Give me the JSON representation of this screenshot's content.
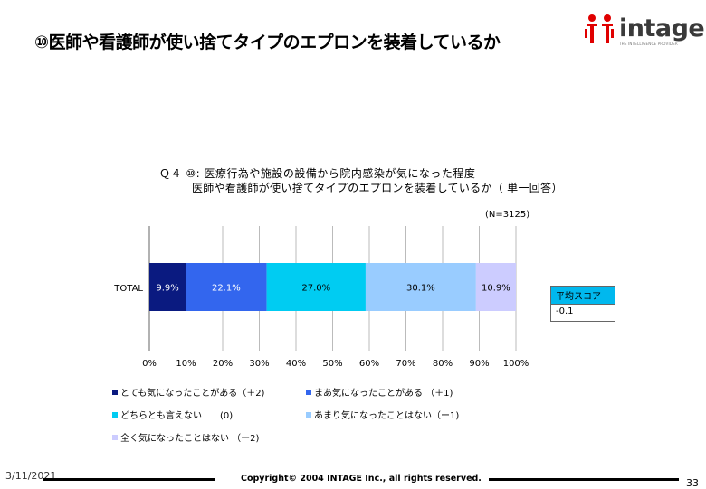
{
  "slide": {
    "title": "⑩医師や看護師が使い捨てタイプのエプロンを装着しているか",
    "logo_text": "intage",
    "logo_tag": "THE INTELLIGENCE PROVIDER",
    "question_line1": "Ｑ４ ⑩:  医療行為や施設の設備から院内感染が気になった程度",
    "question_line2": "医師や看護師が使い捨てタイプのエプロンを装着しているか（ 単一回答）",
    "n_label": "(N=3125)",
    "score_header": "平均スコア",
    "score_value": "-0.1",
    "footer_date": "3/11/2021",
    "footer_copy": "Copyright© 2004 INTAGE Inc., all rights reserved.",
    "page_number": "33"
  },
  "chart_data": {
    "type": "bar",
    "orientation": "horizontal-stacked-100",
    "categories": [
      "TOTAL"
    ],
    "series": [
      {
        "name": "とても気になったことがある（＋2)",
        "values": [
          9.9
        ],
        "label": "9.9%",
        "color": "#0a1a80",
        "label_color": "#ffffff"
      },
      {
        "name": "まあ気になったことがある （＋1)",
        "values": [
          22.1
        ],
        "label": "22.1%",
        "color": "#3366ee",
        "label_color": "#ffffff"
      },
      {
        "name": "どちらとも言えない　　(0)",
        "values": [
          27.0
        ],
        "label": "27.0%",
        "color": "#00ccf2",
        "label_color": "#000000"
      },
      {
        "name": "あまり気になったことはない（ー1)",
        "values": [
          30.1
        ],
        "label": "30.1%",
        "color": "#99ccff",
        "label_color": "#000000"
      },
      {
        "name": "全く気になったことはない （ー2)",
        "values": [
          10.9
        ],
        "label": "10.9%",
        "color": "#ccccff",
        "label_color": "#000000"
      }
    ],
    "xlim": [
      0,
      100
    ],
    "x_ticks": [
      "0%",
      "10%",
      "20%",
      "30%",
      "40%",
      "50%",
      "60%",
      "70%",
      "80%",
      "90%",
      "100%"
    ],
    "grid": true
  }
}
